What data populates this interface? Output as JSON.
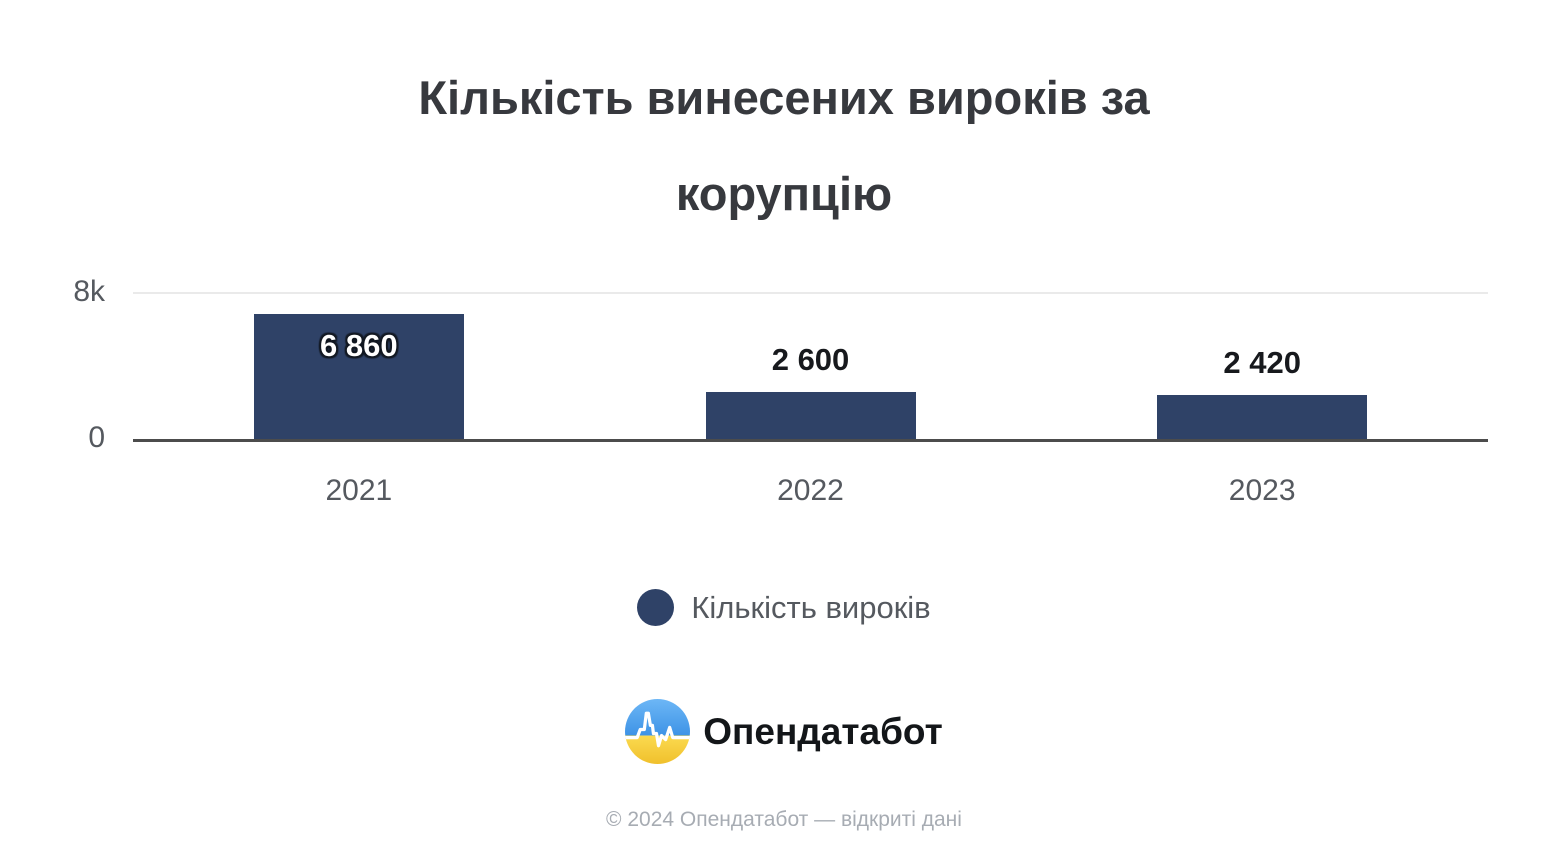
{
  "title_lines": [
    "Кількість винесених вироків за",
    "корупцію"
  ],
  "chart_data": {
    "type": "bar",
    "title": "Кількість винесених вироків за корупцію",
    "categories": [
      "2021",
      "2022",
      "2023"
    ],
    "series": [
      {
        "name": "Кількість вироків",
        "color": "#2f4267",
        "values": [
          6860,
          2600,
          2420
        ]
      }
    ],
    "value_labels": [
      "6 860",
      "2 600",
      "2 420"
    ],
    "xlabel": "",
    "ylabel": "",
    "ylim": [
      0,
      8000
    ],
    "yticks": [
      {
        "value": 0,
        "label": "0"
      },
      {
        "value": 8000,
        "label": "8k"
      }
    ],
    "grid": "single horizontal gridline at 8k, dark axis line at 0",
    "legend_position": "bottom-center"
  },
  "legend": {
    "label": "Кількість вироків",
    "marker_color": "#2f4267"
  },
  "branding": {
    "logo_text": "Опендатабот",
    "logo_icon": "opendatabot-circle-flag-icon",
    "flag_blue": "#54a5ee",
    "flag_yellow": "#f7cf3b"
  },
  "footer": {
    "text": "© 2024 Опендатабот — відкриті дані"
  }
}
